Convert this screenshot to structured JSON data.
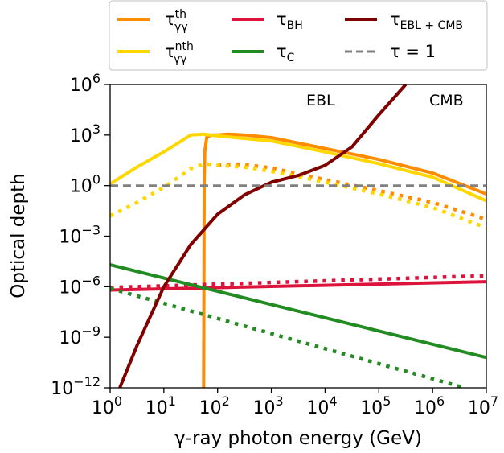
{
  "chart_data": {
    "type": "line",
    "xlabel": "γ-ray photon energy (GeV)",
    "ylabel": "Optical depth",
    "xscale": "log",
    "yscale": "log",
    "xlim_log10": [
      0,
      7
    ],
    "ylim_log10": [
      -12,
      6
    ],
    "x_ticks": [
      {
        "base": "10",
        "exp": "0",
        "log10": 0
      },
      {
        "base": "10",
        "exp": "1",
        "log10": 1
      },
      {
        "base": "10",
        "exp": "2",
        "log10": 2
      },
      {
        "base": "10",
        "exp": "3",
        "log10": 3
      },
      {
        "base": "10",
        "exp": "4",
        "log10": 4
      },
      {
        "base": "10",
        "exp": "5",
        "log10": 5
      },
      {
        "base": "10",
        "exp": "6",
        "log10": 6
      },
      {
        "base": "10",
        "exp": "7",
        "log10": 7
      }
    ],
    "y_ticks": [
      {
        "base": "10",
        "exp": "−12",
        "log10": -12
      },
      {
        "base": "10",
        "exp": "−9",
        "log10": -9
      },
      {
        "base": "10",
        "exp": "−6",
        "log10": -6
      },
      {
        "base": "10",
        "exp": "−3",
        "log10": -3
      },
      {
        "base": "10",
        "exp": "0",
        "log10": 0
      },
      {
        "base": "10",
        "exp": "3",
        "log10": 3
      },
      {
        "base": "10",
        "exp": "6",
        "log10": 6
      }
    ],
    "annotations": [
      "EBL",
      "CMB"
    ],
    "legend_position": "top (above plot, 3 columns)",
    "grid": false,
    "series": [
      {
        "name": "τγγ th",
        "color": "#ff8c00",
        "style": "solid",
        "x_log10": [
          1.74,
          1.75,
          1.76,
          1.8,
          1.9,
          2.0,
          2.2,
          2.5,
          3.0,
          4.0,
          5.0,
          6.0,
          7.0
        ],
        "y_log10": [
          -12,
          0,
          2.0,
          2.9,
          3.0,
          3.0,
          3.05,
          3.0,
          2.85,
          2.2,
          1.55,
          0.75,
          -0.5
        ]
      },
      {
        "name": "τγγ th (dotted)",
        "color": "#ff8c00",
        "style": "dotted",
        "x_log10": [
          2.0,
          2.2,
          2.5,
          3.0,
          4.0,
          5.0,
          6.0,
          7.0
        ],
        "y_log10": [
          1.2,
          1.25,
          1.25,
          1.05,
          0.35,
          -0.3,
          -1.0,
          -2.0
        ]
      },
      {
        "name": "τγγ nth",
        "color": "#ffd700",
        "style": "solid",
        "x_log10": [
          0.0,
          0.5,
          1.0,
          1.5,
          1.75,
          2.0,
          3.0,
          4.0,
          5.0,
          6.0,
          7.0
        ],
        "y_log10": [
          0.1,
          1.1,
          2.0,
          3.0,
          3.05,
          2.95,
          2.65,
          2.0,
          1.3,
          0.5,
          -0.9
        ]
      },
      {
        "name": "τγγ nth (dotted)",
        "color": "#ffd700",
        "style": "dotted",
        "x_log10": [
          0.0,
          0.5,
          1.0,
          1.5,
          1.75,
          2.0,
          2.5,
          3.0,
          4.0,
          5.0,
          6.0,
          7.0
        ],
        "y_log10": [
          -1.8,
          -1.0,
          -0.1,
          1.0,
          1.3,
          1.2,
          1.1,
          0.85,
          0.2,
          -0.5,
          -1.3,
          -2.5
        ]
      },
      {
        "name": "τBH",
        "color": "#dc143c",
        "style": "solid",
        "x_log10": [
          0,
          7
        ],
        "y_log10": [
          -6.2,
          -5.7
        ]
      },
      {
        "name": "τBH (dotted)",
        "color": "#dc143c",
        "style": "dotted",
        "x_log10": [
          0,
          7
        ],
        "y_log10": [
          -6.05,
          -5.35
        ]
      },
      {
        "name": "τC",
        "color": "#228b22",
        "style": "solid",
        "x_log10": [
          0,
          7
        ],
        "y_log10": [
          -4.7,
          -10.2
        ]
      },
      {
        "name": "τC (dotted)",
        "color": "#228b22",
        "style": "dotted",
        "x_log10": [
          0,
          6.6
        ],
        "y_log10": [
          -6.1,
          -12.0
        ]
      },
      {
        "name": "τEBL+CMB",
        "color": "#800000",
        "style": "solid",
        "x_log10": [
          0.18,
          0.5,
          1.0,
          1.5,
          2.0,
          2.5,
          3.0,
          3.5,
          4.0,
          4.5,
          5.0,
          5.5
        ],
        "y_log10": [
          -12,
          -9.5,
          -6.0,
          -3.5,
          -1.7,
          -0.55,
          0.2,
          0.6,
          1.2,
          2.3,
          4.2,
          6.0
        ]
      },
      {
        "name": "τ = 1",
        "color": "#808080",
        "style": "dashed",
        "x_log10": [
          0,
          7
        ],
        "y_log10": [
          0,
          0
        ]
      }
    ]
  },
  "legend": {
    "tau": "τ",
    "th_sup": "th",
    "nth_sup": "nth",
    "gg_sub": "γγ",
    "bh_sub": "BH",
    "c_sub": "C",
    "ebl_sub": "EBL + CMB",
    "eq_one": "τ = 1"
  }
}
